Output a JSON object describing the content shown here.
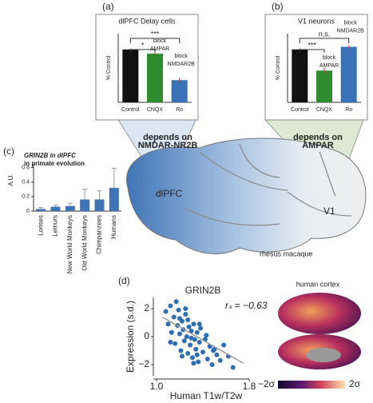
{
  "chart_data": [
    {
      "type": "bar",
      "letter": "(a)",
      "title": "dlPFC Delay cells",
      "ylabel": "% Control",
      "categories": [
        "Control",
        "CNQX",
        "Ro"
      ],
      "values": [
        100,
        92,
        42
      ],
      "errors": [
        2,
        2,
        4
      ],
      "colors": [
        "#111111",
        "#2e8b2e",
        "#3a72b8"
      ],
      "ylim": [
        0,
        130
      ],
      "annotations": [
        [
          "***"
        ],
        [
          "*"
        ],
        [
          "block",
          "AMPAR"
        ],
        [
          "block",
          "NMDAR2B"
        ]
      ]
    },
    {
      "type": "bar",
      "letter": "(b)",
      "title": "V1 neurons",
      "ylabel": "% Control",
      "categories": [
        "Control",
        "CNQX",
        "Ro"
      ],
      "values": [
        100,
        60,
        105
      ],
      "errors": [
        2,
        6,
        3
      ],
      "colors": [
        "#111111",
        "#2e8b2e",
        "#3a72b8"
      ],
      "ylim": [
        0,
        130
      ],
      "annotations": [
        [
          "n.s."
        ],
        [
          "***"
        ],
        [
          "block",
          "AMPAR"
        ],
        [
          "block",
          "NMDAR2B"
        ]
      ]
    },
    {
      "type": "bar",
      "letter": "(c)",
      "title": [
        "GRIN2B in dlPFC",
        "in primate evolution"
      ],
      "ylabel": "A.U.",
      "categories": [
        "Lorises",
        "Lemurs",
        "New World Monkeys",
        "Old World Monkeys",
        "Chimpanzees",
        "Humans"
      ],
      "values": [
        0.03,
        0.06,
        0.07,
        0.16,
        0.16,
        0.32
      ],
      "errors": [
        0.02,
        0.02,
        0.04,
        0.14,
        0.12,
        0.27
      ],
      "color": "#3f74b5",
      "ylim": [
        0,
        0.65
      ],
      "yticks": [
        0,
        0.2,
        0.4,
        0.6
      ]
    },
    {
      "type": "scatter",
      "letter": "(d)",
      "title": "GRIN2B",
      "xlabel": "Human T1w/T2w",
      "ylabel": "Expression (s.d.)",
      "annotation": "rₛ = −0.63",
      "color": "#2f6db3",
      "xlim": [
        1.0,
        1.8
      ],
      "xticks": [
        {
          "value": 1.0,
          "label": "1.0"
        },
        1.8
      ],
      "ylim": [
        -2.8,
        2.8
      ],
      "yticks": [
        {
          "value": -2,
          "label": "−2"
        },
        0,
        2
      ],
      "x": [
        1.08,
        1.1,
        1.12,
        1.13,
        1.15,
        1.16,
        1.18,
        1.19,
        1.2,
        1.21,
        1.22,
        1.23,
        1.24,
        1.25,
        1.26,
        1.27,
        1.28,
        1.29,
        1.3,
        1.31,
        1.32,
        1.33,
        1.34,
        1.35,
        1.36,
        1.37,
        1.38,
        1.4,
        1.42,
        1.44,
        1.46,
        1.48,
        1.5,
        1.52,
        1.55,
        1.58,
        1.62,
        1.66,
        1.12,
        1.17,
        1.22,
        1.27,
        1.32,
        1.37,
        1.43,
        1.49,
        1.25,
        1.3,
        1.35,
        1.2
      ],
      "y": [
        1.8,
        0.9,
        2.2,
        0.3,
        1.4,
        -0.5,
        0.8,
        1.9,
        0.2,
        -1.0,
        1.1,
        0.5,
        -0.3,
        1.6,
        0.0,
        -1.2,
        0.7,
        -0.6,
        0.4,
        -1.5,
        0.9,
        -0.2,
        -0.9,
        0.3,
        -1.8,
        -0.4,
        0.6,
        -1.1,
        -0.2,
        -1.6,
        -0.7,
        -2.0,
        -0.9,
        -1.3,
        -1.7,
        -0.6,
        -1.4,
        -2.2,
        -0.4,
        2.5,
        -1.4,
        1.2,
        -1.9,
        0.9,
        0.1,
        -1.0,
        2.0,
        -0.1,
        -1.3,
        1.3
      ],
      "fit": {
        "x": [
          1.05,
          1.75
        ],
        "y": [
          1.4,
          -1.9
        ]
      }
    }
  ],
  "brain": {
    "nmdar": [
      "depends on",
      "NMDAR-NR2B"
    ],
    "ampar": [
      "depends on",
      "AMPAR"
    ],
    "dlpfc": "dlPFC",
    "v1": "V1",
    "species": "rhesus macaque"
  },
  "cortex": {
    "title": "human cortex",
    "low": "−2σ",
    "high": "2σ"
  }
}
